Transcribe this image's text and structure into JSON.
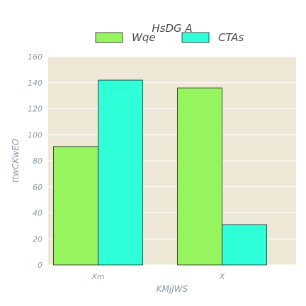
{
  "chart_data": {
    "type": "bar",
    "title": "HsDG A",
    "xlabel": "KMjJWS",
    "ylabel": "ttwCKwEO",
    "categories": [
      "Xm",
      "X"
    ],
    "series": [
      {
        "name": "Wqe",
        "values": [
          91,
          136
        ],
        "color": "#96f55f"
      },
      {
        "name": "CTAs",
        "values": [
          142,
          31
        ],
        "color": "#2effd9"
      }
    ],
    "ylim": [
      0,
      160
    ],
    "yticks": [
      0,
      20,
      40,
      60,
      80,
      100,
      120,
      140,
      160
    ],
    "grid": true,
    "legend": "top-center",
    "background": "#efe8d6"
  }
}
